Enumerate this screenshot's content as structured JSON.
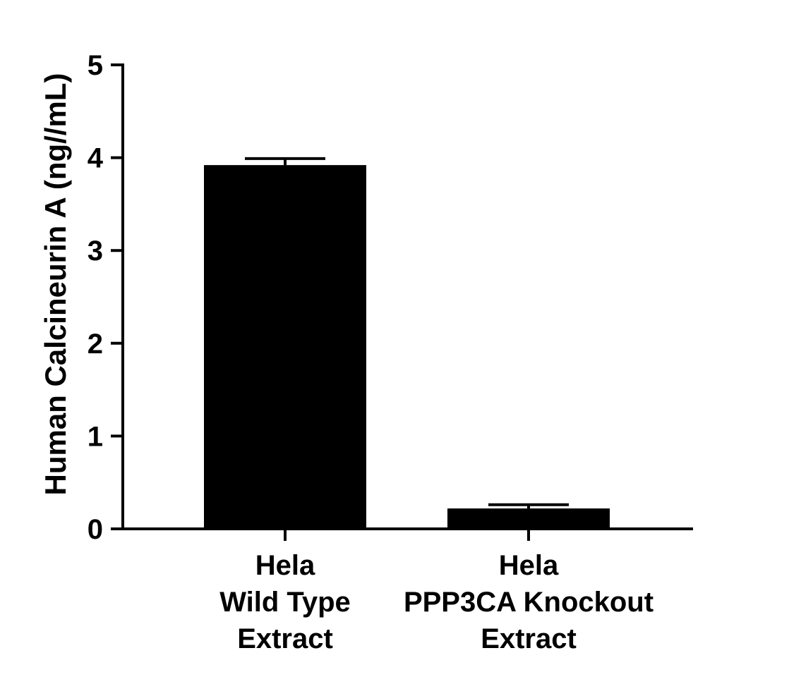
{
  "chart_data": {
    "type": "bar",
    "ylabel": "Human Calcineurin A (ng//mL)",
    "ylim": [
      0,
      5
    ],
    "yticks": [
      "0",
      "1",
      "2",
      "3",
      "4",
      "5"
    ],
    "categories": [
      [
        "Hela",
        "Wild Type",
        "Extract"
      ],
      [
        "Hela",
        "PPP3CA Knockout",
        "Extract"
      ]
    ],
    "values": [
      3.92,
      0.22
    ],
    "errors": [
      0.07,
      0.04
    ],
    "bar_color": "#000000",
    "grid": false
  }
}
